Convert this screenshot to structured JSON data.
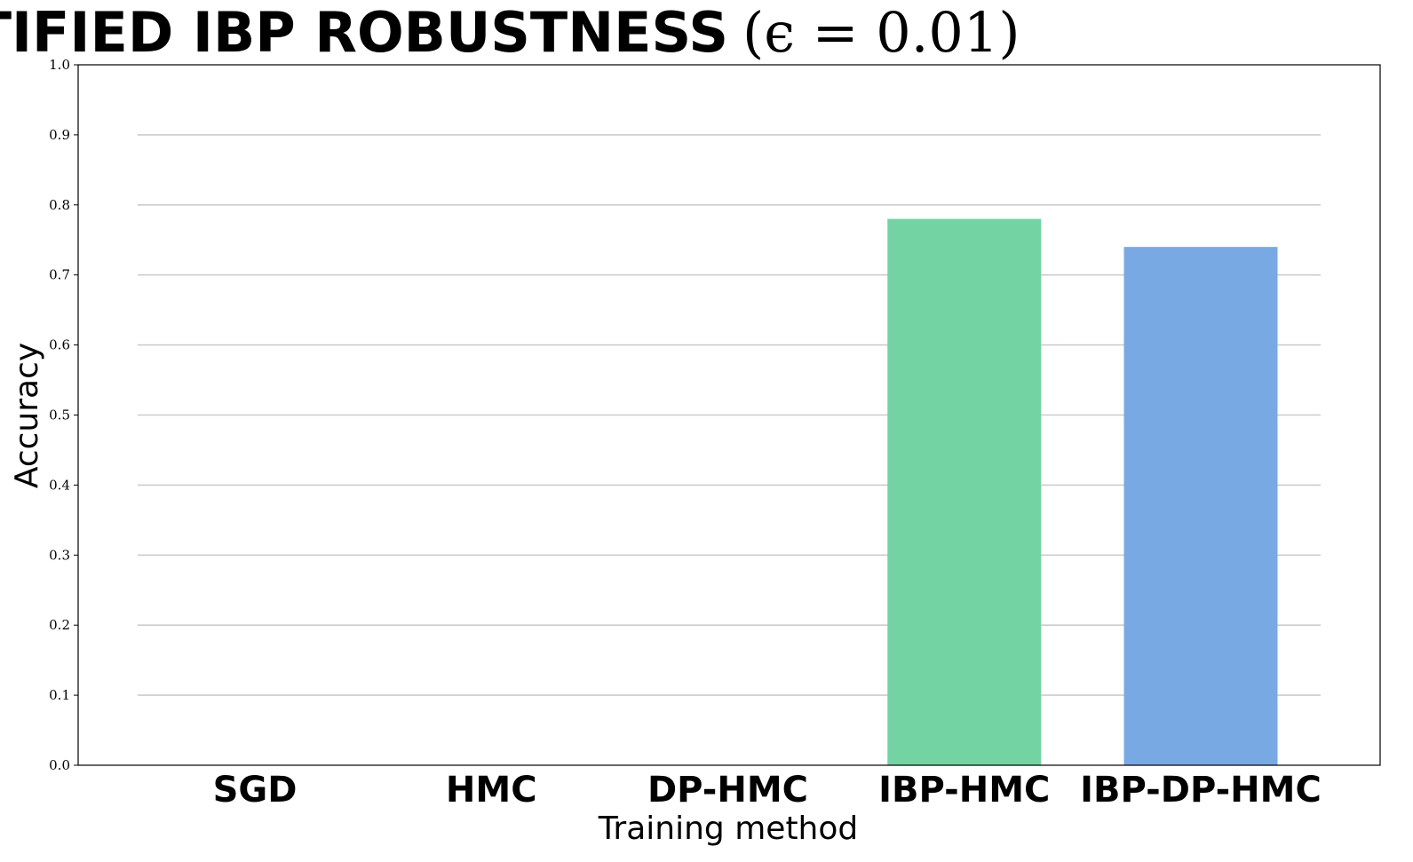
{
  "chart_data": {
    "type": "bar",
    "title": "CERTIFIED IBP ROBUSTNESS",
    "title_math": "(ϵ = 0.01)",
    "xlabel": "Training method",
    "ylabel": "Accuracy",
    "categories": [
      "SGD",
      "HMC",
      "DP-HMC",
      "IBP-HMC",
      "IBP-DP-HMC"
    ],
    "values": [
      0.0,
      0.0,
      0.0,
      0.78,
      0.74
    ],
    "colors": [
      "#74d3a2",
      "#74d3a2",
      "#74d3a2",
      "#74d3a2",
      "#78a9e3"
    ],
    "ylim": [
      0,
      1.0
    ],
    "yticks": [
      "0.0",
      "0.1",
      "0.2",
      "0.3",
      "0.4",
      "0.5",
      "0.6",
      "0.7",
      "0.8",
      "0.9",
      "1.0"
    ],
    "grid": "horizontal",
    "gridline_color": "#cccccc"
  }
}
